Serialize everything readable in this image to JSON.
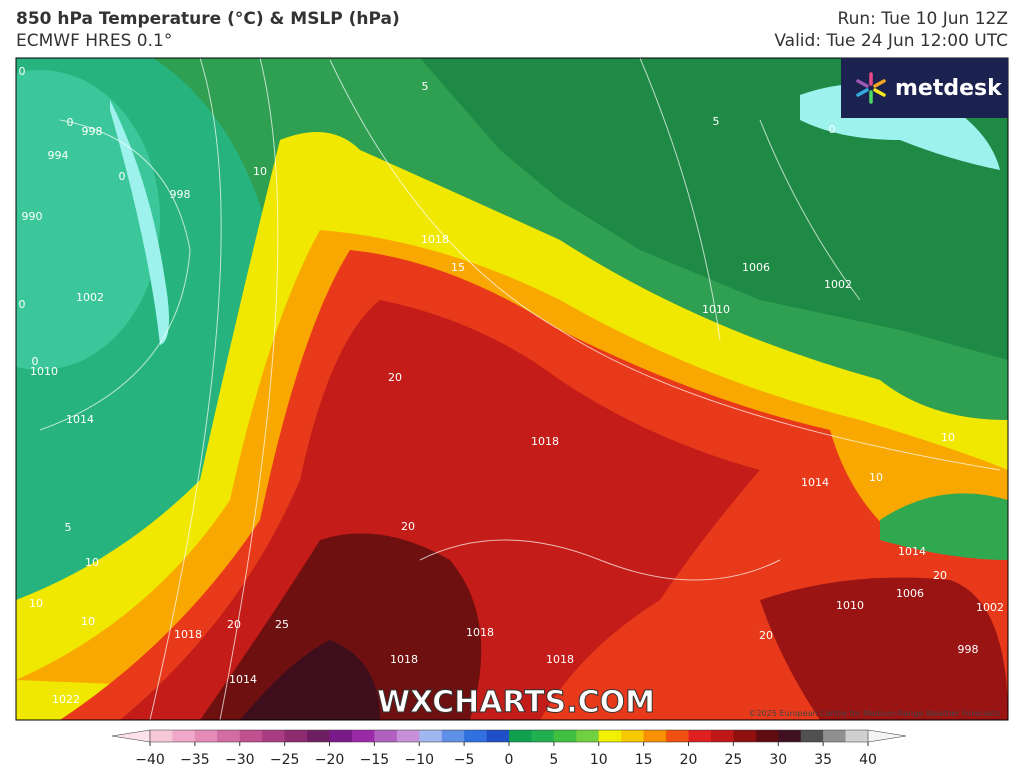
{
  "header": {
    "title": "850 hPa Temperature (°C) & MSLP (hPa)",
    "model": "ECMWF HRES 0.1°",
    "run": "Run: Tue 10 Jun 12Z",
    "valid": "Valid: Tue 24 Jun 12:00 UTC"
  },
  "logo": "metdesk",
  "watermark": "WXCHARTS.COM",
  "copyright": "©2025 European Centre for Medium-Range Weather Forecasts",
  "colorbar": {
    "ticks": [
      "−40",
      "−35",
      "−30",
      "−25",
      "−20",
      "−15",
      "−10",
      "−5",
      "0",
      "5",
      "10",
      "15",
      "20",
      "25",
      "30",
      "35",
      "40"
    ],
    "low_end_color": "#fce0ea",
    "high_end_color": "#f4f4f4",
    "colors": [
      "#f7c6d8",
      "#f0a8c8",
      "#e38ab5",
      "#d26ca3",
      "#c05090",
      "#a83c80",
      "#8e2a70",
      "#6e1e60",
      "#7a1a8a",
      "#9a2aa8",
      "#b060c0",
      "#c890d8",
      "#a0b8f0",
      "#6090e8",
      "#3070e0",
      "#2050c8",
      "#10a050",
      "#20b050",
      "#40c040",
      "#70d040",
      "#f0f000",
      "#f8c800",
      "#f89000",
      "#f05010",
      "#e02020",
      "#c01818",
      "#901010",
      "#600c10",
      "#401020",
      "#505050",
      "#909090",
      "#d0d0d0"
    ]
  },
  "map_labels": [
    "0",
    "5",
    "0",
    "998",
    "994",
    "0",
    "998",
    "990",
    "1002",
    "0",
    "0",
    "1010",
    "1014",
    "1018",
    "15",
    "10",
    "1006",
    "1002",
    "1010",
    "5",
    "0",
    "20",
    "1018",
    "10",
    "10",
    "1014",
    "5",
    "20",
    "10",
    "1014",
    "20",
    "10",
    "10",
    "1018",
    "20",
    "25",
    "1018",
    "1010",
    "1006",
    "998",
    "1018",
    "1018",
    "20",
    "1014",
    "1022",
    "1002"
  ]
}
